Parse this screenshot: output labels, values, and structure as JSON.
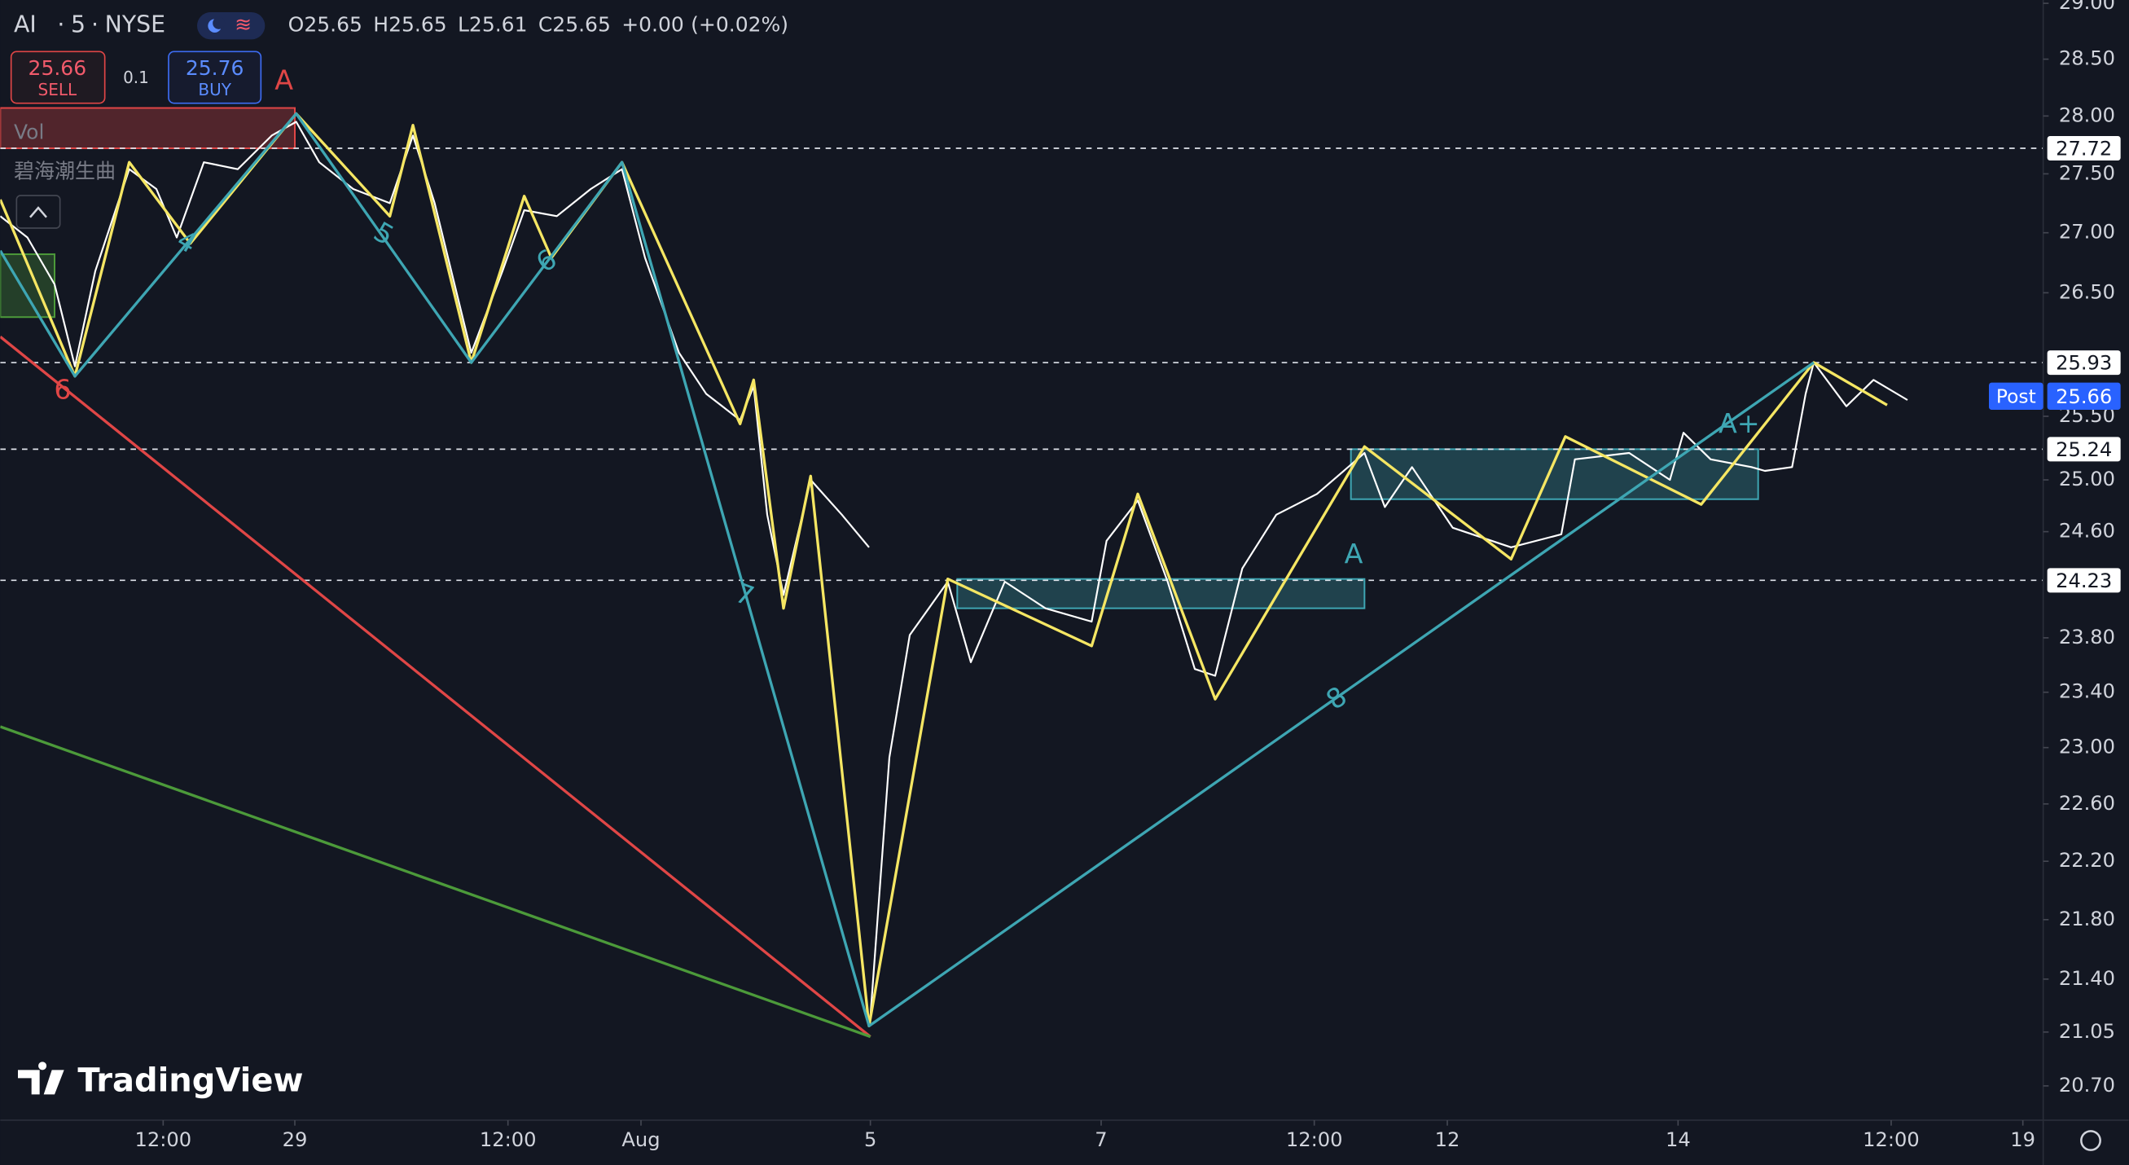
{
  "header": {
    "symbol": "AI",
    "interval": "5",
    "exchange": "NYSE",
    "ohlc": [
      {
        "label": "O",
        "value": 25.65
      },
      {
        "label": "H",
        "value": 25.65
      },
      {
        "label": "L",
        "value": 25.61
      },
      {
        "label": "C",
        "value": 25.65
      }
    ],
    "change": "+0.00",
    "change_percent": "(+0.02%)",
    "sell": {
      "value": 25.66,
      "label": "SELL"
    },
    "spread": 0.1,
    "buy": {
      "value": 25.76,
      "label": "BUY"
    },
    "indicators": [
      "Vol",
      "碧海潮生曲"
    ],
    "logo": "TradingView"
  },
  "chart_data": {
    "type": "line",
    "log_scale": true,
    "ylim": [
      20.48,
      29.03
    ],
    "yticks": [
      {
        "value": 29,
        "label": "29.00"
      },
      {
        "value": 28.5,
        "label": "28.50"
      },
      {
        "value": 28,
        "label": "28.00"
      },
      {
        "value": 27.5,
        "label": "27.50"
      },
      {
        "value": 27,
        "label": "27.00"
      },
      {
        "value": 26.5,
        "label": "26.50"
      },
      {
        "value": 25.5,
        "label": "25.50"
      },
      {
        "value": 25,
        "label": "25.00"
      },
      {
        "value": 24.6,
        "label": "24.60"
      },
      {
        "value": 23.8,
        "label": "23.80"
      },
      {
        "value": 23.4,
        "label": "23.40"
      },
      {
        "value": 23,
        "label": "23.00"
      },
      {
        "value": 22.6,
        "label": "22.60"
      },
      {
        "value": 22.2,
        "label": "22.20"
      },
      {
        "value": 21.8,
        "label": "21.80"
      },
      {
        "value": 21.4,
        "label": "21.40"
      },
      21.05,
      {
        "value": 20.7,
        "label": "20.70"
      }
    ],
    "xlim": [
      0,
      1505
    ],
    "xticks": [
      {
        "value": 120,
        "label": "12:00"
      },
      {
        "value": 217,
        "label": "29"
      },
      {
        "value": 374,
        "label": "12:00"
      },
      {
        "value": 472,
        "label": "Aug"
      },
      {
        "value": 641,
        "label": "5"
      },
      {
        "value": 811,
        "label": "7"
      },
      {
        "value": 968,
        "label": "12:00"
      },
      {
        "value": 1066,
        "label": "12"
      },
      {
        "value": 1236,
        "label": "14"
      },
      {
        "value": 1393,
        "label": "12:00"
      },
      {
        "value": 1490,
        "label": "19"
      }
    ],
    "series": [
      {
        "color": "#ffffff",
        "x": [
          0,
          20,
          40,
          55,
          70,
          95,
          115,
          130,
          150,
          175,
          200,
          218,
          235,
          260,
          287,
          304,
          320,
          347,
          370,
          386,
          410,
          435,
          458,
          475,
          500,
          520,
          545,
          555,
          565,
          577,
          597,
          620,
          640,
          640.5,
          641,
          655,
          670,
          698,
          715,
          740,
          770,
          804,
          815,
          838,
          860,
          880,
          895,
          915,
          940,
          970,
          1005,
          1020,
          1040,
          1070,
          1113,
          1150,
          1160,
          1200,
          1230,
          1240,
          1260,
          1290,
          1300,
          1320,
          1330,
          1336,
          1360,
          1380,
          1405
        ],
        "values": [
          27.14,
          26.96,
          26.57,
          25.9,
          26.68,
          27.54,
          27.37,
          26.96,
          27.6,
          27.54,
          27.83,
          27.95,
          27.6,
          27.37,
          27.25,
          27.83,
          27.25,
          26.01,
          26.68,
          27.19,
          27.14,
          27.37,
          27.54,
          26.79,
          26.01,
          25.68,
          25.47,
          25.74,
          24.73,
          24.12,
          25.0,
          24.73,
          24.48,
          null,
          21.15,
          22.93,
          23.82,
          24.22,
          23.62,
          24.22,
          24.02,
          23.92,
          24.53,
          24.84,
          24.22,
          23.57,
          23.52,
          24.32,
          24.73,
          24.89,
          25.21,
          24.79,
          25.1,
          24.63,
          24.48,
          24.58,
          25.16,
          25.21,
          25.0,
          25.37,
          25.16,
          25.1,
          25.07,
          25.1,
          25.68,
          25.93,
          25.58,
          25.79,
          25.63
        ]
      },
      {
        "color": "#f5e663",
        "x": [
          0,
          55,
          95,
          140,
          218,
          287,
          304,
          347,
          386,
          406,
          458,
          545,
          555,
          577,
          597,
          640,
          698,
          804,
          838,
          895,
          1005,
          1113,
          1153,
          1253,
          1336,
          1390
        ],
        "values": [
          27.28,
          25.82,
          27.6,
          26.91,
          28.02,
          27.14,
          27.92,
          25.93,
          27.31,
          26.79,
          27.6,
          25.44,
          25.79,
          24.02,
          25.03,
          21.09,
          24.24,
          23.74,
          24.89,
          23.35,
          25.26,
          24.39,
          25.34,
          24.81,
          25.93,
          25.59
        ]
      },
      {
        "color": "#3ea6b3",
        "x": [
          0,
          55,
          218,
          347,
          458,
          640,
          1336
        ],
        "values": [
          26.85,
          25.82,
          28.02,
          25.93,
          27.6,
          21.09,
          25.93
        ]
      },
      {
        "color": "#e04646",
        "x": [
          0,
          641
        ],
        "values": [
          26.14,
          21.02
        ]
      },
      {
        "color": "#4c9a3a",
        "x": [
          0,
          641
        ],
        "values": [
          23.15,
          21.02
        ]
      }
    ],
    "zones": [
      {
        "x": [
          705,
          1005
        ],
        "y": [
          24.02,
          24.24
        ],
        "color": "#3ea6b3"
      },
      {
        "x": [
          995,
          1295
        ],
        "y": [
          24.85,
          25.24
        ],
        "color": "#3ea6b3"
      },
      {
        "x": [
          0,
          40
        ],
        "y": [
          26.3,
          26.82
        ],
        "color": "#4c9a3a"
      },
      {
        "x": [
          0,
          217
        ],
        "y": [
          27.72,
          28.07
        ],
        "color": "#e04646"
      }
    ],
    "price_levels": [
      27.72,
      25.93,
      25.24,
      24.23
    ],
    "last_price": {
      "label": "Post",
      "value": 25.66
    },
    "annotations": [
      "6",
      "4",
      "5",
      "6",
      "7",
      "8",
      "A",
      "A+",
      "A"
    ]
  }
}
